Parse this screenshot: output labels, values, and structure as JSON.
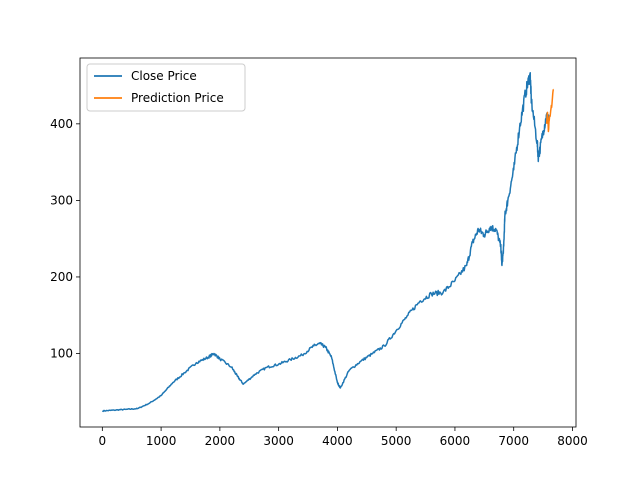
{
  "chart_data": {
    "type": "line",
    "title": "",
    "xlabel": "",
    "ylabel": "",
    "xlim": [
      -380,
      8060
    ],
    "ylim": [
      4,
      486
    ],
    "x_ticks": [
      0,
      1000,
      2000,
      3000,
      4000,
      5000,
      6000,
      7000,
      8000
    ],
    "y_ticks": [
      100,
      200,
      300,
      400
    ],
    "grid": false,
    "legend": {
      "placement": "top-left"
    },
    "series": [
      {
        "name": "Close Price",
        "color": "#1f77b4",
        "x": [
          0,
          200,
          400,
          600,
          800,
          1000,
          1200,
          1400,
          1600,
          1800,
          1900,
          2000,
          2200,
          2300,
          2400,
          2600,
          2800,
          3000,
          3200,
          3400,
          3600,
          3700,
          3800,
          3900,
          4000,
          4050,
          4200,
          4400,
          4600,
          4800,
          5000,
          5200,
          5400,
          5600,
          5800,
          6000,
          6200,
          6300,
          6400,
          6500,
          6600,
          6700,
          6780,
          6800,
          6830,
          6850,
          6900,
          7000,
          7100,
          7200,
          7280,
          7300,
          7400,
          7420,
          7500,
          7560,
          7600
        ],
        "y": [
          25,
          26,
          27,
          28,
          35,
          45,
          62,
          75,
          88,
          95,
          100,
          93,
          82,
          70,
          60,
          73,
          82,
          86,
          92,
          98,
          110,
          113,
          108,
          95,
          62,
          55,
          78,
          90,
          100,
          110,
          130,
          150,
          168,
          178,
          180,
          195,
          215,
          245,
          262,
          255,
          265,
          262,
          240,
          215,
          240,
          280,
          300,
          340,
          395,
          440,
          465,
          430,
          375,
          355,
          390,
          410,
          405
        ]
      },
      {
        "name": "Prediction Price",
        "color": "#ff7f0e",
        "x": [
          7560,
          7575,
          7590,
          7605,
          7620,
          7635,
          7650,
          7665,
          7680
        ],
        "y": [
          400,
          415,
          390,
          405,
          410,
          420,
          425,
          440,
          445
        ]
      }
    ]
  }
}
